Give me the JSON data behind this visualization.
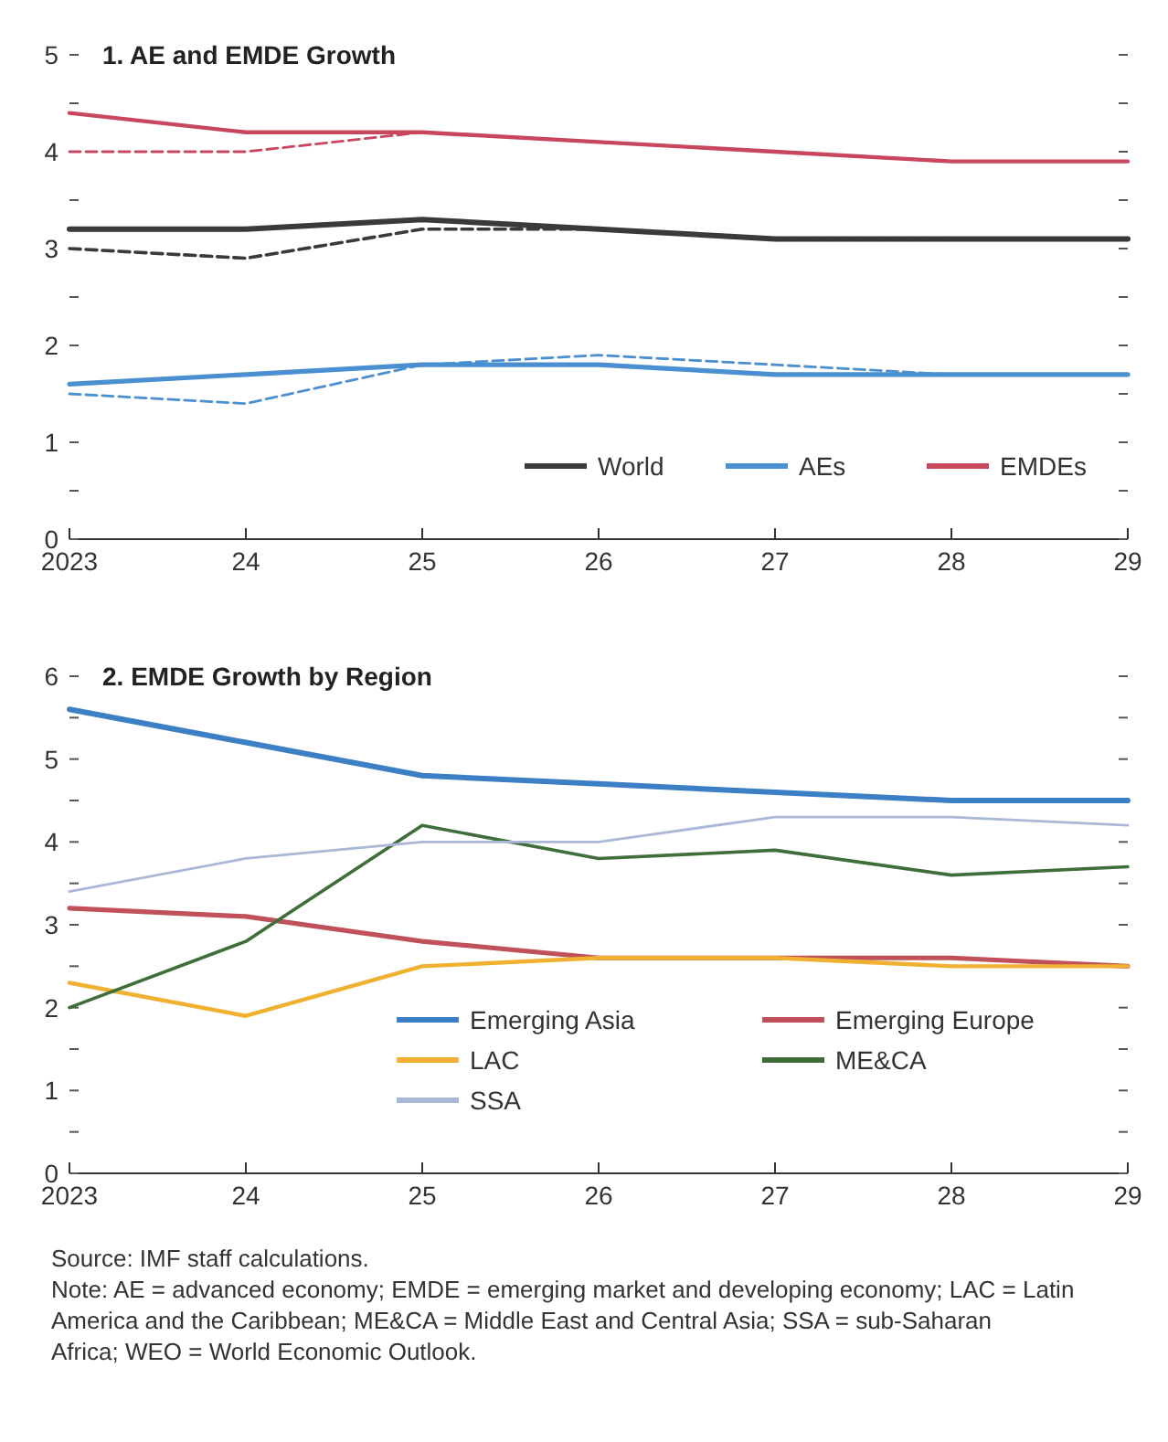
{
  "chart_data": [
    {
      "type": "line",
      "title": "1. AE and EMDE Growth",
      "x": [
        2023,
        2024,
        2025,
        2026,
        2027,
        2028,
        2029
      ],
      "xlim": [
        2023,
        2029
      ],
      "xticks": [
        2023,
        {
          "value": 2024,
          "label": "24"
        },
        {
          "value": 2025,
          "label": "25"
        },
        {
          "value": 2026,
          "label": "26"
        },
        {
          "value": 2027,
          "label": "27"
        },
        {
          "value": 2028,
          "label": "28"
        },
        {
          "value": 2029,
          "label": "29"
        }
      ],
      "ylim": [
        0,
        5
      ],
      "yticks": [
        0,
        {
          "value": 0.5,
          "label": null
        },
        1,
        {
          "value": 1.5,
          "label": null
        },
        2,
        {
          "value": 2.5,
          "label": null
        },
        3,
        {
          "value": 3.5,
          "label": null
        },
        4,
        {
          "value": 4.5,
          "label": null
        },
        5
      ],
      "legend": "bottom right",
      "series": [
        {
          "name": "World",
          "color": "#3a3a3a",
          "line_style": "solid",
          "values": [
            3.2,
            3.2,
            3.3,
            3.2,
            3.1,
            3.1,
            3.1
          ]
        },
        {
          "name": "AEs",
          "color": "#4a8fd0",
          "line_style": "solid",
          "values": [
            1.6,
            1.7,
            1.8,
            1.8,
            1.7,
            1.7,
            1.7
          ]
        },
        {
          "name": "EMDEs",
          "color": "#c8465e",
          "line_style": "solid",
          "values": [
            4.4,
            4.2,
            4.2,
            4.1,
            4.0,
            3.9,
            3.9
          ]
        },
        {
          "color": "#3a3a3a",
          "line_style": "dashed",
          "x": [
            2023,
            2024,
            2025,
            2026,
            2027,
            2028
          ],
          "values": [
            3.0,
            2.9,
            3.2,
            3.2,
            3.1,
            3.1
          ]
        },
        {
          "color": "#4a8fd0",
          "line_style": "dashed",
          "x": [
            2023,
            2024,
            2025,
            2026,
            2027,
            2028
          ],
          "values": [
            1.5,
            1.4,
            1.8,
            1.9,
            1.8,
            1.7
          ]
        },
        {
          "color": "#c8465e",
          "line_style": "dashed",
          "x": [
            2023,
            2024,
            2025,
            2026,
            2027,
            2028
          ],
          "values": [
            4.0,
            4.0,
            4.2,
            4.1,
            4.0,
            3.9
          ]
        }
      ]
    },
    {
      "type": "line",
      "title": "2. EMDE Growth by Region",
      "x": [
        2023,
        2024,
        2025,
        2026,
        2027,
        2028,
        2029
      ],
      "xlim": [
        2023,
        2029
      ],
      "xticks": [
        2023,
        {
          "value": 2024,
          "label": "24"
        },
        {
          "value": 2025,
          "label": "25"
        },
        {
          "value": 2026,
          "label": "26"
        },
        {
          "value": 2027,
          "label": "27"
        },
        {
          "value": 2028,
          "label": "28"
        },
        {
          "value": 2029,
          "label": "29"
        }
      ],
      "ylim": [
        0,
        6
      ],
      "yticks": [
        0,
        {
          "value": 0.5,
          "label": null
        },
        1,
        {
          "value": 1.5,
          "label": null
        },
        2,
        {
          "value": 2.5,
          "label": null
        },
        3,
        {
          "value": 3.5,
          "label": null
        },
        4,
        {
          "value": 4.5,
          "label": null
        },
        5,
        {
          "value": 5.5,
          "label": null
        },
        6
      ],
      "legend": "bottom right",
      "series": [
        {
          "name": "Emerging Asia",
          "color": "#3d7fc4",
          "line_style": "solid",
          "values": [
            5.6,
            5.2,
            4.8,
            4.7,
            4.6,
            4.5,
            4.5
          ]
        },
        {
          "name": "Emerging Europe",
          "color": "#c0505a",
          "line_style": "solid",
          "values": [
            3.2,
            3.1,
            2.8,
            2.6,
            2.6,
            2.6,
            2.5
          ]
        },
        {
          "name": "LAC",
          "color": "#f0b030",
          "line_style": "solid",
          "values": [
            2.3,
            1.9,
            2.5,
            2.6,
            2.6,
            2.5,
            2.5
          ]
        },
        {
          "name": "ME&CA",
          "color": "#3f6e3a",
          "line_style": "solid",
          "values": [
            2.0,
            2.8,
            4.2,
            3.8,
            3.9,
            3.6,
            3.7
          ]
        },
        {
          "name": "SSA",
          "color": "#a9b8d6",
          "line_style": "solid",
          "values": [
            3.4,
            3.8,
            4.0,
            4.0,
            4.3,
            4.3,
            4.2
          ]
        }
      ],
      "annotations": [
        "Source: IMF staff calculations.",
        "Note: AE = advanced economy; EMDE = emerging market and developing economy; LAC = Latin America and the Caribbean; ME&CA = Middle East and Central Asia; SSA = sub-Saharan Africa; WEO = World Economic Outlook."
      ]
    }
  ]
}
